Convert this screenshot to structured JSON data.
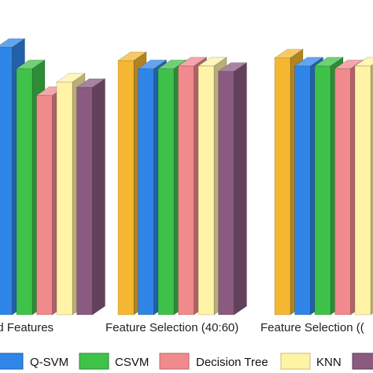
{
  "chart_data": {
    "type": "bar",
    "style": "3d",
    "categories": [
      "ed Features",
      "Feature Selection (40:60)",
      "Feature Selection (("
    ],
    "series": [
      {
        "name": "",
        "color": "#F5B731",
        "values": [
          null,
          95,
          96
        ]
      },
      {
        "name": "Q-SVM",
        "color": "#2F86E8",
        "values": [
          100,
          92,
          93
        ]
      },
      {
        "name": "CSVM",
        "color": "#3FC24A",
        "values": [
          92,
          92,
          93
        ]
      },
      {
        "name": "Decision Tree",
        "color": "#F08A8D",
        "values": [
          82,
          93,
          92
        ]
      },
      {
        "name": "KNN",
        "color": "#FFF3A6",
        "values": [
          87,
          93,
          93
        ]
      },
      {
        "name": "",
        "color": "#8A5A80",
        "values": [
          85,
          91,
          92
        ]
      }
    ],
    "ylim": [
      0,
      100
    ],
    "grid": false,
    "legend_position": "bottom"
  }
}
